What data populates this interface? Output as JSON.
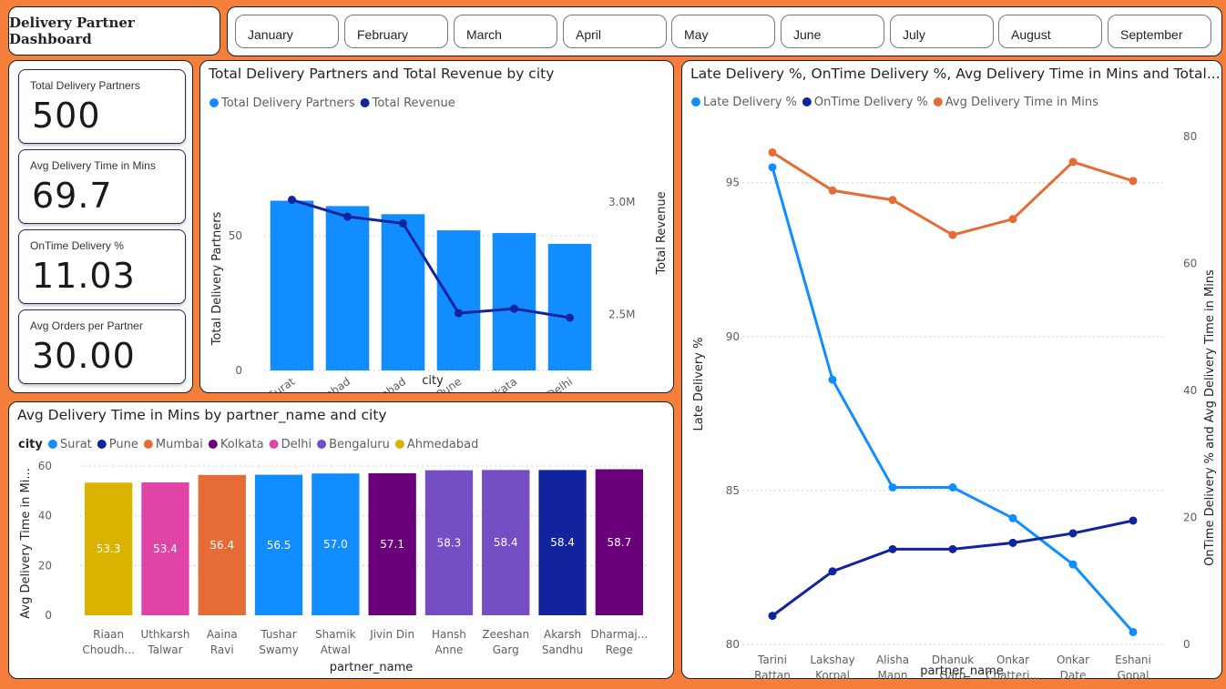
{
  "header": {
    "title": "Delivery Partner Dashboard"
  },
  "months": [
    "January",
    "February",
    "March",
    "April",
    "May",
    "June",
    "July",
    "August",
    "September"
  ],
  "kpis": [
    {
      "label": "Total Delivery Partners",
      "value": "500"
    },
    {
      "label": "Avg Delivery Time in Mins",
      "value": "69.7"
    },
    {
      "label": "OnTime Delivery %",
      "value": "11.03"
    },
    {
      "label": "Avg Orders per Partner",
      "value": "30.00"
    }
  ],
  "colors": {
    "background": "#F47E3A",
    "blue": "#118DFF",
    "navy": "#12239E",
    "orange": "#E66C37",
    "purple": "#6B007B",
    "pink": "#E044A7",
    "violet": "#744EC2",
    "gold": "#D9B300"
  },
  "chart_data": [
    {
      "type": "bar",
      "title": "Total Delivery Partners and Total Revenue by city",
      "xlabel": "city",
      "ylabel": "Total Delivery Partners",
      "y2label": "Total Revenue",
      "categories": [
        "Surat",
        "Ahmedabad",
        "Hyderabad",
        "Pune",
        "Kolkata",
        "Delhi"
      ],
      "ylim": [
        0,
        75
      ],
      "yticks": [
        0,
        50
      ],
      "y2lim": [
        2250000,
        3150000
      ],
      "y2ticks": [
        {
          "value": 2500000,
          "label": "2.5M"
        },
        {
          "value": 3000000,
          "label": "3.0M"
        }
      ],
      "series": [
        {
          "name": "Total Delivery Partners",
          "kind": "bar",
          "axis": "left",
          "color": "#118DFF",
          "values": [
            63,
            61,
            58,
            52,
            51,
            47
          ]
        },
        {
          "name": "Total Revenue",
          "kind": "line",
          "axis": "right",
          "color": "#12239E",
          "values": [
            3010000,
            2935000,
            2905000,
            2505000,
            2525000,
            2485000
          ]
        }
      ],
      "legend": "top-left"
    },
    {
      "type": "bar",
      "title": "Avg Delivery Time in Mins by partner_name and city",
      "xlabel": "partner_name",
      "ylabel": "Avg Delivery Time in Mi...",
      "legend_title": "city",
      "legend": [
        {
          "name": "Surat",
          "color": "#118DFF"
        },
        {
          "name": "Pune",
          "color": "#12239E"
        },
        {
          "name": "Mumbai",
          "color": "#E66C37"
        },
        {
          "name": "Kolkata",
          "color": "#6B007B"
        },
        {
          "name": "Delhi",
          "color": "#E044A7"
        },
        {
          "name": "Bengaluru",
          "color": "#744EC2"
        },
        {
          "name": "Ahmedabad",
          "color": "#D9B300"
        }
      ],
      "ylim": [
        0,
        60
      ],
      "yticks": [
        0,
        20,
        40,
        60
      ],
      "bars": [
        {
          "name": [
            "Riaan",
            "Choudh..."
          ],
          "value": 53.3,
          "label": "53.3",
          "city": "Ahmedabad"
        },
        {
          "name": [
            "Uthkarsh",
            "Talwar"
          ],
          "value": 53.4,
          "label": "53.4",
          "city": "Delhi"
        },
        {
          "name": [
            "Aaina",
            "Ravi"
          ],
          "value": 56.4,
          "label": "56.4",
          "city": "Mumbai"
        },
        {
          "name": [
            "Tushar",
            "Swamy"
          ],
          "value": 56.5,
          "label": "56.5",
          "city": "Surat"
        },
        {
          "name": [
            "Shamik",
            "Atwal"
          ],
          "value": 57.0,
          "label": "57.0",
          "city": "Surat"
        },
        {
          "name": [
            "Jivin Din",
            ""
          ],
          "value": 57.1,
          "label": "57.1",
          "city": "Kolkata"
        },
        {
          "name": [
            "Hansh",
            "Anne"
          ],
          "value": 58.3,
          "label": "58.3",
          "city": "Bengaluru"
        },
        {
          "name": [
            "Zeeshan",
            "Garg"
          ],
          "value": 58.4,
          "label": "58.4",
          "city": "Bengaluru"
        },
        {
          "name": [
            "Akarsh",
            "Sandhu"
          ],
          "value": 58.4,
          "label": "58.4",
          "city": "Pune"
        },
        {
          "name": [
            "Dharmaj...",
            "Rege"
          ],
          "value": 58.7,
          "label": "58.7",
          "city": "Kolkata"
        }
      ]
    },
    {
      "type": "line",
      "title": "Late Delivery %, OnTime Delivery %, Avg Delivery Time in Mins and Total...",
      "xlabel": "partner_name",
      "ylabel": "Late Delivery %",
      "y2label": "OnTime Delivery % and Avg Delivery Time in Mins",
      "categories": [
        [
          "Tarini",
          "Rattan"
        ],
        [
          "Lakshay",
          "Korpal"
        ],
        [
          "Alisha",
          "Mann"
        ],
        [
          "Dhanuk",
          "Garg"
        ],
        [
          "Onkar",
          "Chatterj..."
        ],
        [
          "Onkar",
          "Date"
        ],
        [
          "Eshani",
          "Gopal"
        ]
      ],
      "ylim": [
        80,
        96.5
      ],
      "yticks": [
        80,
        85,
        90,
        95
      ],
      "y2lim": [
        0,
        80
      ],
      "y2ticks": [
        0,
        20,
        40,
        60,
        80
      ],
      "series": [
        {
          "name": "Late Delivery %",
          "axis": "left",
          "color": "#118DFF",
          "values": [
            95.5,
            88.6,
            85.1,
            85.1,
            84.1,
            82.6,
            80.4
          ]
        },
        {
          "name": "OnTime Delivery %",
          "axis": "right",
          "color": "#12239E",
          "values": [
            4.5,
            11.5,
            15.0,
            15.0,
            16.0,
            17.5,
            19.5
          ]
        },
        {
          "name": "Avg Delivery Time in Mins",
          "axis": "right",
          "color": "#E66C37",
          "values": [
            77.5,
            71.5,
            70.0,
            64.5,
            67.0,
            76.0,
            73.0
          ]
        }
      ],
      "legend": "top-left"
    }
  ]
}
